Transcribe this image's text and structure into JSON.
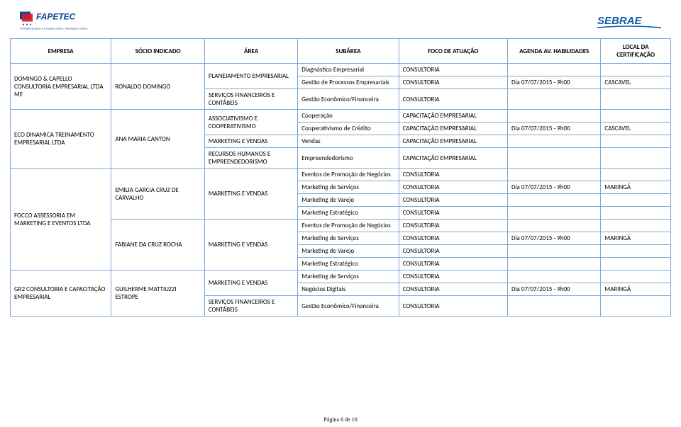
{
  "logos": {
    "left_name": "FAPETEC",
    "left_tagline": "Fundação de Apoio à Pesquisa, Ensino, Tecnologia e Cultura",
    "right_name": "SEBRAE"
  },
  "columns": [
    "EMPRESA",
    "SÓCIO INDICADO",
    "ÁREA",
    "SUBÁREA",
    "FOCO DE ATUAÇÃO",
    "AGENDA AV. HABILIDADES",
    "LOCAL DA CERTIFICAÇÃO"
  ],
  "colors": {
    "border": "#7ba7d7",
    "header_text": "#000000",
    "cell_text": "#000000",
    "logo_left_blue": "#0b4596",
    "logo_left_red": "#d32027",
    "logo_right_blue": "#0b5ea8"
  },
  "rows": [
    {
      "empresa": "DOMINGO & CAPELLO CONSULTORIA EMPRESARIAL LTDA ME",
      "empresa_rowspan": 3,
      "socio": "RONALDO DOMINGO",
      "socio_rowspan": 3,
      "area": "PLANEJAMENTO EMPRESARIAL",
      "area_rowspan": 2,
      "subarea": "Diagnóstico Empresarial",
      "foco": "CONSULTORIA",
      "agenda": "",
      "local": ""
    },
    {
      "subarea": "Gestão de Processos Empresariais",
      "foco": "CONSULTORIA",
      "agenda": "Dia 07/07/2015 - 9h00",
      "local": "CASCAVEL"
    },
    {
      "area": "SERVIÇOS FINANCEIROS E CONTÁBEIS",
      "subarea": "Gestão Econômico/Financeira",
      "foco": "CONSULTORIA",
      "agenda": "",
      "local": ""
    },
    {
      "empresa": "ECO DINAMICA TREINAMENTO EMPRESARIAL LTDA",
      "empresa_rowspan": 4,
      "socio": "ANA MARIA CANTON",
      "socio_rowspan": 4,
      "area": "ASSOCIATIVISMO E COOPERATIVISMO",
      "area_rowspan": 2,
      "subarea": "Cooperação",
      "foco": "CAPACITAÇÃO EMPRESARIAL",
      "agenda": "",
      "local": ""
    },
    {
      "subarea": "Cooperativismo de Crédito",
      "foco": "CAPACITAÇÃO EMPRESARIAL",
      "agenda": "Dia 07/07/2015 - 9h00",
      "local": "CASCAVEL"
    },
    {
      "area": "MARKETING E VENDAS",
      "subarea": "Vendas",
      "foco": "CAPACITAÇÃO EMPRESARIAL",
      "agenda": "",
      "local": ""
    },
    {
      "area": "RECURSOS HUMANOS E EMPREENDEDORISMO",
      "subarea": "Empreendedorismo",
      "foco": "CAPACITAÇÃO EMPRESARIAL",
      "agenda": "",
      "local": ""
    },
    {
      "empresa": "FOCCO ASSESSORIA EM MARKETING E EVENTOS LTDA",
      "empresa_rowspan": 8,
      "socio": "EMILIA GARCIA CRUZ DE CARVALHO",
      "socio_rowspan": 4,
      "area": "MARKETING E VENDAS",
      "area_rowspan": 4,
      "subarea": "Eventos de Promoção de Negócios",
      "foco": "CONSULTORIA",
      "agenda": "",
      "local": ""
    },
    {
      "subarea": "Marketing de Serviços",
      "foco": "CONSULTORIA",
      "agenda": "Dia 07/07/2015 - 9h00",
      "local": "MARINGÁ"
    },
    {
      "subarea": "Marketing de Varejo",
      "foco": "CONSULTORIA",
      "agenda": "",
      "local": ""
    },
    {
      "subarea": "Marketing Estratégico",
      "foco": "CONSULTORIA",
      "agenda": "",
      "local": ""
    },
    {
      "socio": "FABIANE DA CRUZ ROCHA",
      "socio_rowspan": 4,
      "area": "MARKETING E VENDAS",
      "area_rowspan": 4,
      "subarea": "Eventos de Promoção de Negócios",
      "foco": "CONSULTORIA",
      "agenda": "",
      "local": ""
    },
    {
      "subarea": "Marketing de Serviços",
      "foco": "CONSULTORIA",
      "agenda": "Dia 07/07/2015 - 9h00",
      "local": "MARINGÁ"
    },
    {
      "subarea": "Marketing de Varejo",
      "foco": "CONSULTORIA",
      "agenda": "",
      "local": ""
    },
    {
      "subarea": "Marketing Estratégico",
      "foco": "CONSULTORIA",
      "agenda": "",
      "local": ""
    },
    {
      "empresa": "GR2 CONSULTORIA E CAPACITAÇÃO EMPRESARIAL",
      "empresa_rowspan": 3,
      "socio": "GUILHERME MATTIUZZI ESTROPE",
      "socio_rowspan": 3,
      "area": "MARKETING E VENDAS",
      "area_rowspan": 2,
      "subarea": "Marketing de Serviços",
      "foco": "CONSULTORIA",
      "agenda": "",
      "local": ""
    },
    {
      "subarea": "Negócios Digitais",
      "foco": "CONSULTORIA",
      "agenda": "Dia 07/07/2015 - 9h00",
      "local": "MARINGÁ"
    },
    {
      "area": "SERVIÇOS FINANCEIROS E CONTÁBEIS",
      "subarea": "Gestão Econômico/Financeira",
      "foco": "CONSULTORIA",
      "agenda": "",
      "local": ""
    }
  ],
  "footer": "Página 6 de 10"
}
